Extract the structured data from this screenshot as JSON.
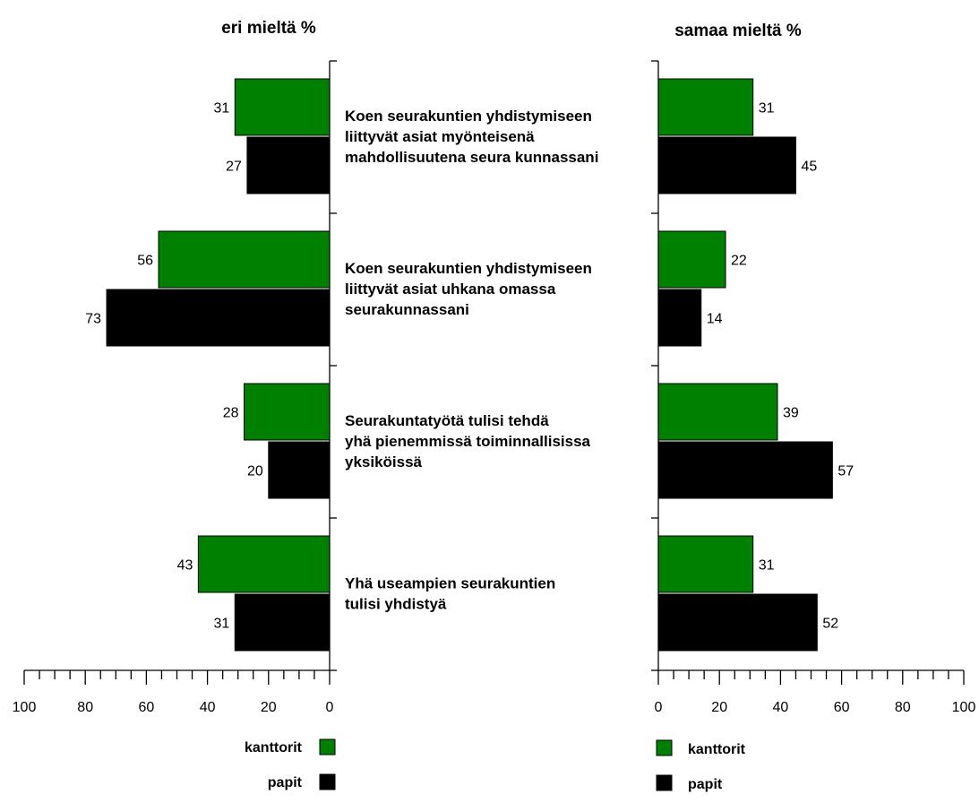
{
  "chart_data": [
    {
      "type": "bar",
      "orientation": "horizontal",
      "direction": "right-to-left",
      "title": "eri mieltä %",
      "categories": [
        "Koen seurakuntien yhdistymiseen liittyvät asiat myönteisenä mahdollisuutena seura kunnassani",
        "Koen seurakuntien yhdistymiseen liittyvät asiat uhkana omassa seurakunnassani",
        "Seurakuntatyötä tulisi tehdä yhä pienemmissä toiminnallisissa yksiköissä",
        "Yhä useampien seurakuntien tulisi yhdistyä"
      ],
      "series": [
        {
          "name": "kanttorit",
          "color": "#008000",
          "values": [
            31,
            56,
            28,
            43
          ]
        },
        {
          "name": "papit",
          "color": "#000000",
          "values": [
            27,
            73,
            20,
            31
          ]
        }
      ],
      "xlim": [
        0,
        100
      ],
      "ticks": [
        "100",
        "80",
        "60",
        "40",
        "20",
        "0"
      ],
      "legend": "bottom"
    },
    {
      "type": "bar",
      "orientation": "horizontal",
      "title": "samaa mieltä %",
      "categories": [
        "Koen seurakuntien yhdistymiseen liittyvät asiat myönteisenä mahdollisuutena seura kunnassani",
        "Koen seurakuntien yhdistymiseen liittyvät asiat uhkana omassa seurakunnassani",
        "Seurakuntatyötä tulisi tehdä yhä pienemmissä toiminnallisissa yksiköissä",
        "Yhä useampien seurakuntien tulisi yhdistyä"
      ],
      "series": [
        {
          "name": "kanttorit",
          "color": "#008000",
          "values": [
            31,
            22,
            39,
            31
          ]
        },
        {
          "name": "papit",
          "color": "#000000",
          "values": [
            45,
            14,
            57,
            52
          ]
        }
      ],
      "xlim": [
        0,
        100
      ],
      "ticks": [
        "0",
        "20",
        "40",
        "60",
        "80",
        "100"
      ],
      "legend": "bottom"
    }
  ],
  "statement_lines": [
    [
      "Koen seurakuntien yhdistymiseen",
      "liittyvät asiat myönteisenä",
      "mahdollisuutena seura kunnassani"
    ],
    [
      "Koen seurakuntien yhdistymiseen",
      "liittyvät asiat uhkana omassa",
      "seurakunnassani"
    ],
    [
      "Seurakuntatyötä tulisi tehdä",
      "yhä pienemmissä toiminnallisissa",
      "yksiköissä"
    ],
    [
      "Yhä useampien seurakuntien",
      "tulisi yhdistyä"
    ]
  ],
  "legend": {
    "kanttorit": "kanttorit",
    "papit": "papit"
  }
}
